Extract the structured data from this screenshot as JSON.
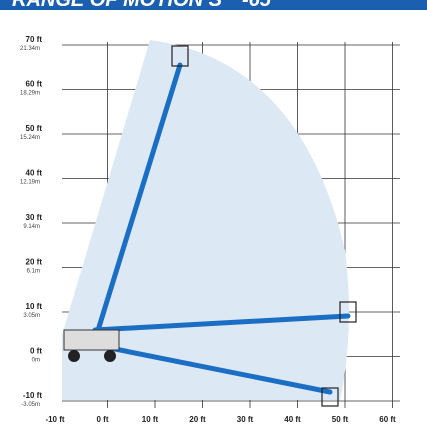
{
  "header": {
    "title": "RANGE OF MOTION S™-65"
  },
  "y_axis": [
    {
      "ft": "70 ft",
      "m": "21.34m"
    },
    {
      "ft": "60 ft",
      "m": "18.29m"
    },
    {
      "ft": "50 ft",
      "m": "15.24m"
    },
    {
      "ft": "40 ft",
      "m": "12.19m"
    },
    {
      "ft": "30 ft",
      "m": "9.14m"
    },
    {
      "ft": "20 ft",
      "m": "6.1m"
    },
    {
      "ft": "10 ft",
      "m": "3.05m"
    },
    {
      "ft": "0 ft",
      "m": "0m"
    },
    {
      "ft": "-10 ft",
      "m": "-3.05m"
    }
  ],
  "x_axis": [
    "-10 ft",
    "0 ft",
    "10 ft",
    "20 ft",
    "30 ft",
    "40 ft",
    "50 ft",
    "60 ft"
  ]
}
